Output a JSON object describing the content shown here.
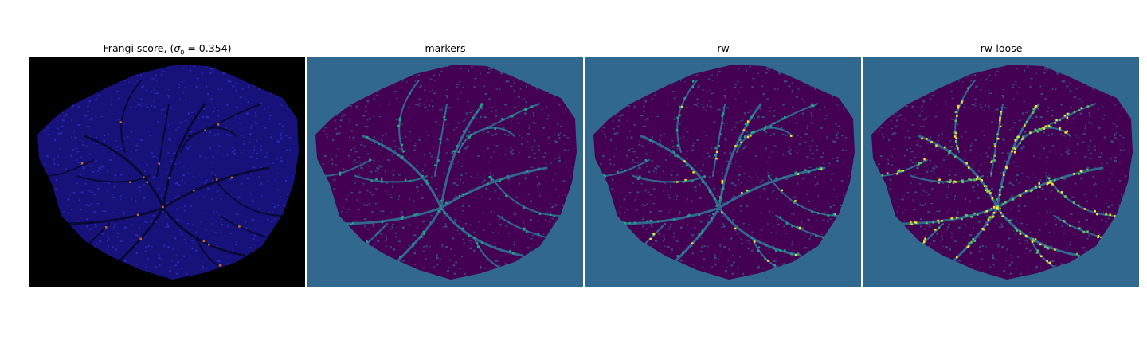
{
  "figure": {
    "panels": [
      {
        "id": "frangi",
        "title_prefix": "Frangi score, (",
        "title_sigma": "σ",
        "title_sub": "0",
        "title_suffix": " = 0.354)",
        "background": "#000000",
        "fill": "#17127a",
        "texture": "#2a2bb8",
        "vessel": "#090938",
        "highlight": "#c26a3d"
      },
      {
        "id": "markers",
        "title": "markers",
        "background": "#31688e",
        "fill": "#440154",
        "texture": "#3b528b",
        "vessel": "#31688e",
        "highlight": "#21a685"
      },
      {
        "id": "rw",
        "title": "rw",
        "background": "#31688e",
        "fill": "#440154",
        "texture": "#3b528b",
        "vessel": "#31688e",
        "highlight": "#21a685",
        "accent": "#fde725"
      },
      {
        "id": "rw-loose",
        "title": "rw-loose",
        "background": "#31688e",
        "fill": "#440154",
        "texture": "#3b528b",
        "vessel": "#31688e",
        "highlight": "#5ec962",
        "accent": "#fde725"
      }
    ]
  }
}
